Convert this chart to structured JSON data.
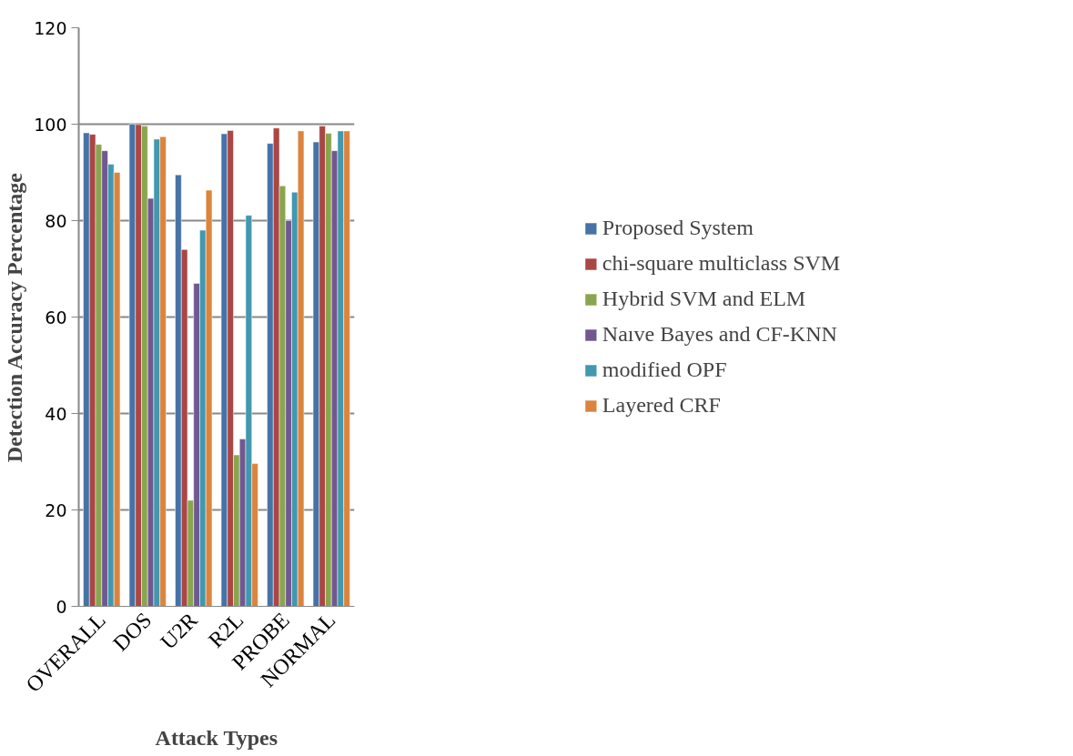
{
  "chart_data": {
    "type": "bar",
    "xlabel": "Attack Types",
    "ylabel": "Detection Accuracy Percentage",
    "categories": [
      "OVERALL",
      "DOS",
      "U2R",
      "R2L",
      "PROBE",
      "NORMAL"
    ],
    "series": [
      {
        "name": "Proposed System",
        "color": "#4572a7",
        "values": [
          98.2,
          100,
          89.5,
          98,
          96,
          96.3
        ]
      },
      {
        "name": "chi-square multiclass SVM",
        "color": "#aa4643",
        "values": [
          97.9,
          99.9,
          74,
          98.7,
          99.2,
          99.6
        ]
      },
      {
        "name": "Hybrid SVM and ELM",
        "color": "#89a54e",
        "values": [
          95.8,
          99.6,
          22,
          31.4,
          87.2,
          98.1
        ]
      },
      {
        "name": "Naıve Bayes and CF-KNN",
        "color": "#71588f",
        "values": [
          94.5,
          84.6,
          67,
          34.7,
          80,
          94.5
        ]
      },
      {
        "name": "modified OPF",
        "color": "#4198af",
        "values": [
          91.7,
          96.9,
          78,
          81.1,
          85.9,
          98.6
        ]
      },
      {
        "name": "Layered CRF",
        "color": "#db843d",
        "values": [
          90,
          97.4,
          86.3,
          29.6,
          98.6,
          98.6
        ]
      }
    ],
    "ylim": [
      0,
      120
    ],
    "yticks": [
      0,
      20,
      40,
      60,
      80,
      100,
      120
    ],
    "grid": "y",
    "legend": "right"
  }
}
